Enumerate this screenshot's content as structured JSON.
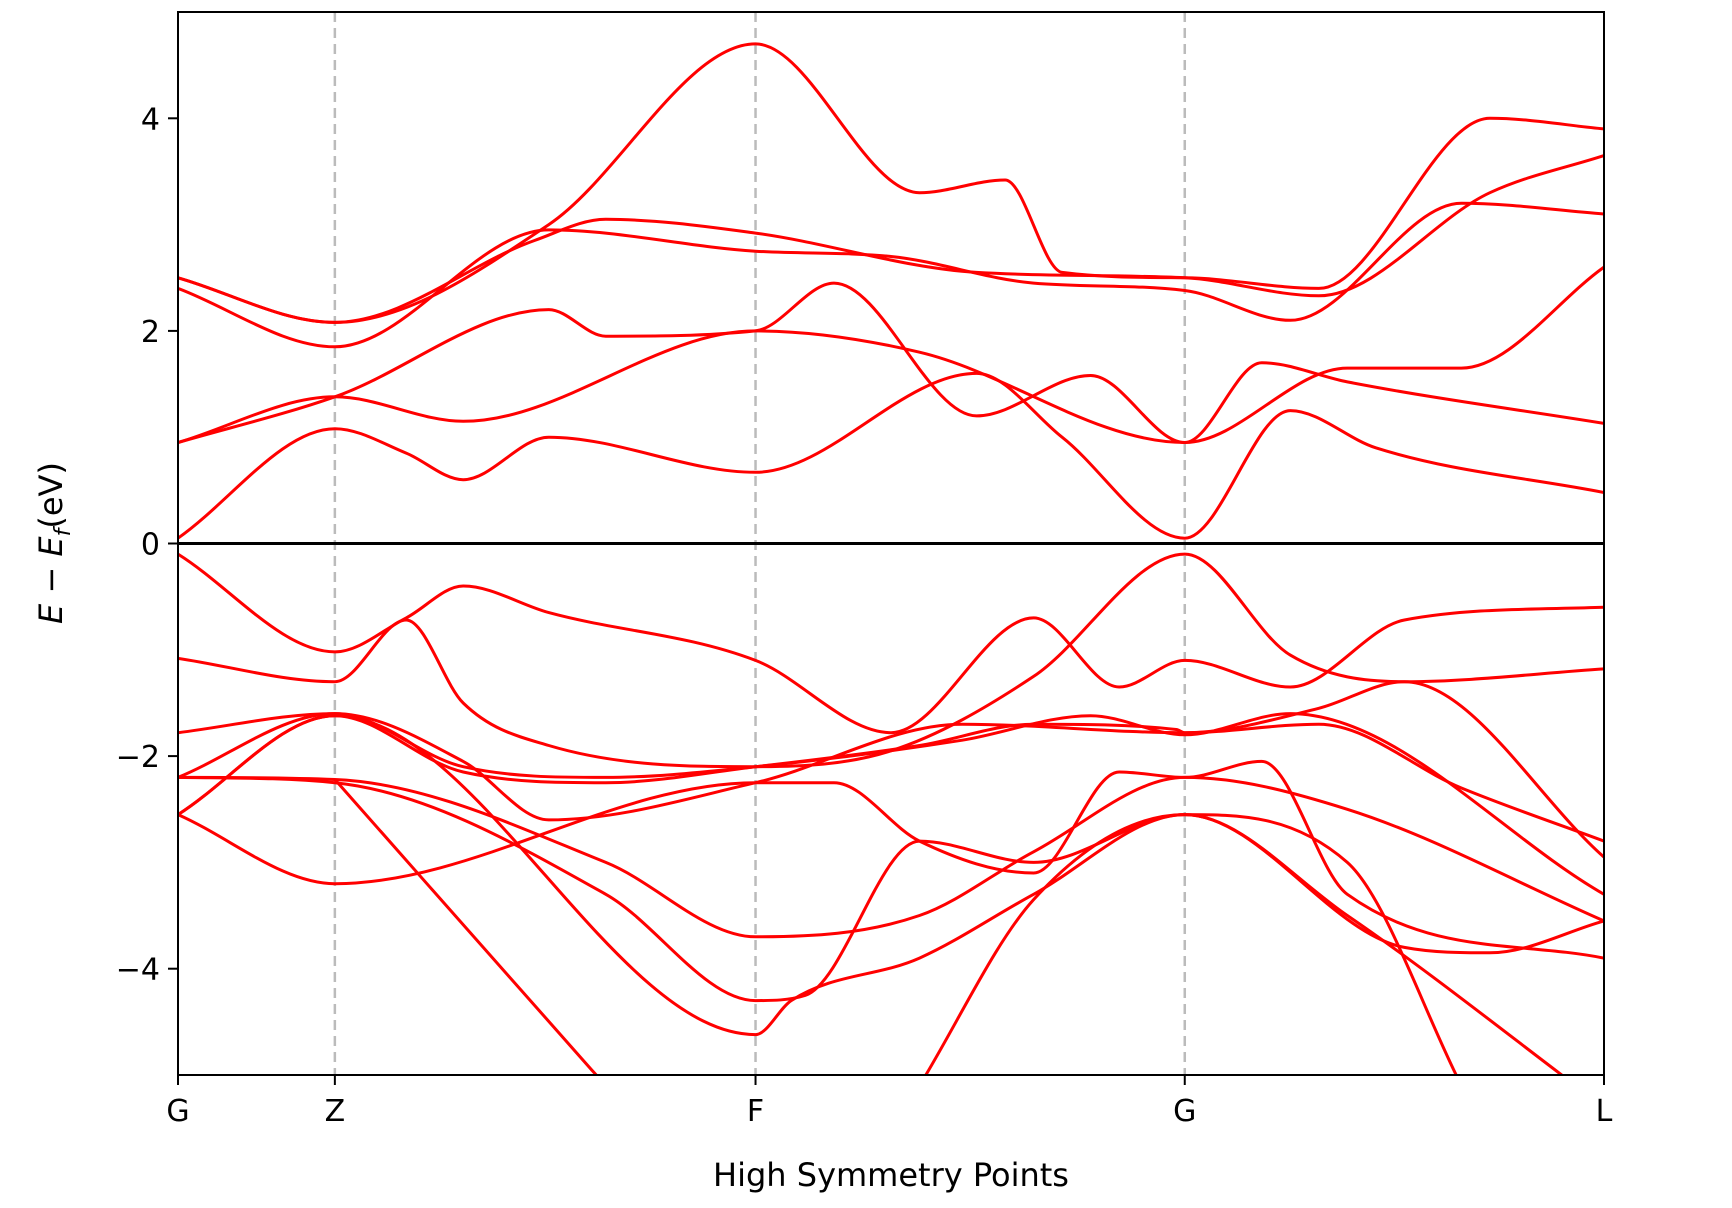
{
  "chart_data": {
    "type": "line",
    "xlabel": "High Symmetry Points",
    "ylabel_parts": {
      "e": "E",
      "minus": " − ",
      "ef": "E",
      "sub": "f",
      "unit": "(eV)"
    },
    "x_ticks": [
      {
        "label": "G",
        "x": 0.0
      },
      {
        "label": "Z",
        "x": 0.11
      },
      {
        "label": "F",
        "x": 0.405
      },
      {
        "label": "G",
        "x": 0.706
      },
      {
        "label": "L",
        "x": 1.0
      }
    ],
    "xlim": [
      0,
      1
    ],
    "ylim": [
      -5,
      5
    ],
    "y_ticks": [
      {
        "label": "−4",
        "value": -4
      },
      {
        "label": "−2",
        "value": -2
      },
      {
        "label": "0",
        "value": 0
      },
      {
        "label": "2",
        "value": 2
      },
      {
        "label": "4",
        "value": 4
      }
    ],
    "fermi_level": 0,
    "series_color": "#ff0000",
    "vline_color": "#bbbbbb",
    "series": [
      {
        "x": [
          0,
          0.11,
          0.26,
          0.405,
          0.52,
          0.58,
          0.62,
          0.706,
          0.8,
          0.92,
          1.0
        ],
        "y": [
          2.5,
          2.08,
          3.0,
          4.7,
          3.3,
          3.42,
          2.55,
          2.5,
          2.4,
          4.0,
          3.9
        ]
      },
      {
        "x": [
          0,
          0.11,
          0.26,
          0.405,
          0.5,
          0.6,
          0.706,
          0.78,
          0.9,
          1.0
        ],
        "y": [
          2.4,
          1.85,
          2.95,
          2.75,
          2.7,
          2.45,
          2.38,
          2.1,
          3.2,
          3.1
        ]
      },
      {
        "x": [
          0,
          0.11,
          0.25,
          0.3,
          0.405,
          0.56,
          0.706,
          0.8,
          0.92,
          1.0
        ],
        "y": [
          2.5,
          2.08,
          2.85,
          3.05,
          2.92,
          2.55,
          2.5,
          2.33,
          3.3,
          3.65
        ]
      },
      {
        "x": [
          0,
          0.11,
          0.26,
          0.3,
          0.405,
          0.46,
          0.56,
          0.64,
          0.706,
          0.82,
          0.9,
          1.0
        ],
        "y": [
          0.95,
          1.38,
          2.2,
          1.95,
          2.0,
          2.45,
          1.2,
          1.58,
          0.95,
          1.65,
          1.65,
          2.6
        ]
      },
      {
        "x": [
          0,
          0.11,
          0.2,
          0.405,
          0.52,
          0.706,
          0.76,
          0.82,
          1.0
        ],
        "y": [
          0.95,
          1.38,
          1.15,
          2.0,
          1.8,
          0.95,
          1.7,
          1.52,
          1.13
        ]
      },
      {
        "x": [
          0,
          0.11,
          0.16,
          0.2,
          0.26,
          0.405,
          0.56,
          0.62,
          0.706,
          0.78,
          0.84,
          1.0
        ],
        "y": [
          0.05,
          1.08,
          0.85,
          0.6,
          1.0,
          0.67,
          1.6,
          1.0,
          0.05,
          1.25,
          0.9,
          0.48
        ]
      },
      {
        "x": [
          0,
          0.11,
          0.16,
          0.2,
          0.26,
          0.405,
          0.5,
          0.6,
          0.66,
          0.706,
          0.78,
          0.86,
          1.0
        ],
        "y": [
          -0.1,
          -1.02,
          -0.7,
          -0.4,
          -0.65,
          -1.1,
          -1.78,
          -0.7,
          -1.35,
          -1.1,
          -1.35,
          -0.72,
          -0.6
        ]
      },
      {
        "x": [
          0,
          0.11,
          0.16,
          0.2,
          0.26,
          0.405,
          0.5,
          0.6,
          0.706,
          0.78,
          0.86,
          1.0
        ],
        "y": [
          -1.08,
          -1.3,
          -0.72,
          -1.5,
          -1.9,
          -2.1,
          -1.95,
          -1.25,
          -0.1,
          -1.05,
          -1.3,
          -1.18
        ]
      },
      {
        "x": [
          0,
          0.11,
          0.2,
          0.26,
          0.405,
          0.55,
          0.706,
          0.8,
          0.86,
          1.0
        ],
        "y": [
          -1.78,
          -1.6,
          -2.05,
          -2.6,
          -2.25,
          -1.7,
          -1.78,
          -1.55,
          -1.3,
          -2.95
        ]
      },
      {
        "x": [
          0,
          0.11,
          0.2,
          0.3,
          0.405,
          0.55,
          0.64,
          0.706,
          0.78,
          1.0
        ],
        "y": [
          -2.2,
          -1.6,
          -2.1,
          -2.2,
          -2.1,
          -1.85,
          -1.62,
          -1.8,
          -1.6,
          -3.3
        ]
      },
      {
        "x": [
          0,
          0.11,
          0.2,
          0.3,
          0.405,
          0.52,
          0.6,
          0.7,
          0.706,
          0.8,
          0.9,
          1.0
        ],
        "y": [
          -2.55,
          -1.62,
          -2.15,
          -2.25,
          -2.1,
          -1.9,
          -1.7,
          -1.75,
          -1.78,
          -1.7,
          -2.3,
          -2.8
        ]
      },
      {
        "x": [
          0,
          0.11,
          0.3,
          0.405,
          0.52,
          0.6,
          0.706,
          0.82,
          1.0
        ],
        "y": [
          -2.2,
          -2.22,
          -3.0,
          -3.7,
          -3.5,
          -2.9,
          -2.2,
          -2.5,
          -3.55
        ]
      },
      {
        "x": [
          0,
          0.11,
          0.405,
          0.46,
          0.52,
          0.6,
          0.66,
          0.706,
          0.76,
          0.82,
          1.0
        ],
        "y": [
          -2.55,
          -3.2,
          -2.25,
          -2.25,
          -2.8,
          -3.1,
          -2.15,
          -2.2,
          -2.05,
          -3.3,
          -3.9
        ]
      },
      {
        "x": [
          0,
          0.11,
          0.3,
          0.405,
          0.44,
          0.52,
          0.6,
          0.706,
          0.86,
          0.92,
          1.0
        ],
        "y": [
          -2.2,
          -2.25,
          -3.3,
          -4.3,
          -4.25,
          -2.8,
          -3.0,
          -2.55,
          -3.8,
          -3.85,
          -3.55
        ]
      },
      {
        "x": [
          0,
          0.11,
          0.405,
          0.43,
          0.52,
          0.6,
          0.706,
          0.82,
          1.0
        ],
        "y": [
          -2.55,
          -1.62,
          -4.62,
          -4.3,
          -3.9,
          -3.3,
          -2.55,
          -3.5,
          -5.3
        ]
      },
      {
        "x": [
          0.11,
          0.29,
          0.3
        ],
        "y": [
          -2.22,
          -4.95,
          -5.1
        ]
      },
      {
        "x": [
          0.52,
          0.6,
          0.706,
          0.82,
          0.9
        ],
        "y": [
          -5.1,
          -3.35,
          -2.55,
          -3.0,
          -5.1
        ]
      }
    ]
  }
}
